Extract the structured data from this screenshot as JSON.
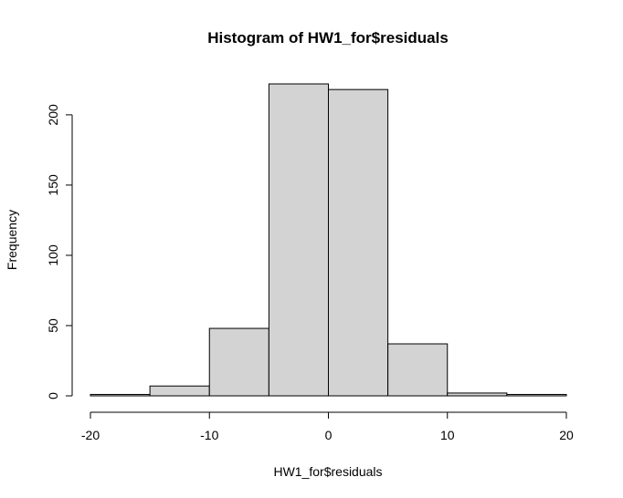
{
  "chart_data": {
    "type": "bar",
    "title": "Histogram of HW1_for$residuals",
    "xlabel": "HW1_for$residuals",
    "ylabel": "Frequency",
    "bin_edges": [
      -20,
      -15,
      -10,
      -5,
      0,
      5,
      10,
      15,
      20
    ],
    "values": [
      1,
      7,
      48,
      222,
      218,
      37,
      2,
      1
    ],
    "xlim": [
      -20,
      20
    ],
    "ylim": [
      0,
      222
    ],
    "x_ticks": [
      -20,
      -10,
      0,
      10,
      20
    ],
    "y_ticks": [
      0,
      50,
      100,
      150,
      200
    ],
    "bar_color": "#d3d3d3",
    "border_color": "#000000",
    "grid": false
  }
}
